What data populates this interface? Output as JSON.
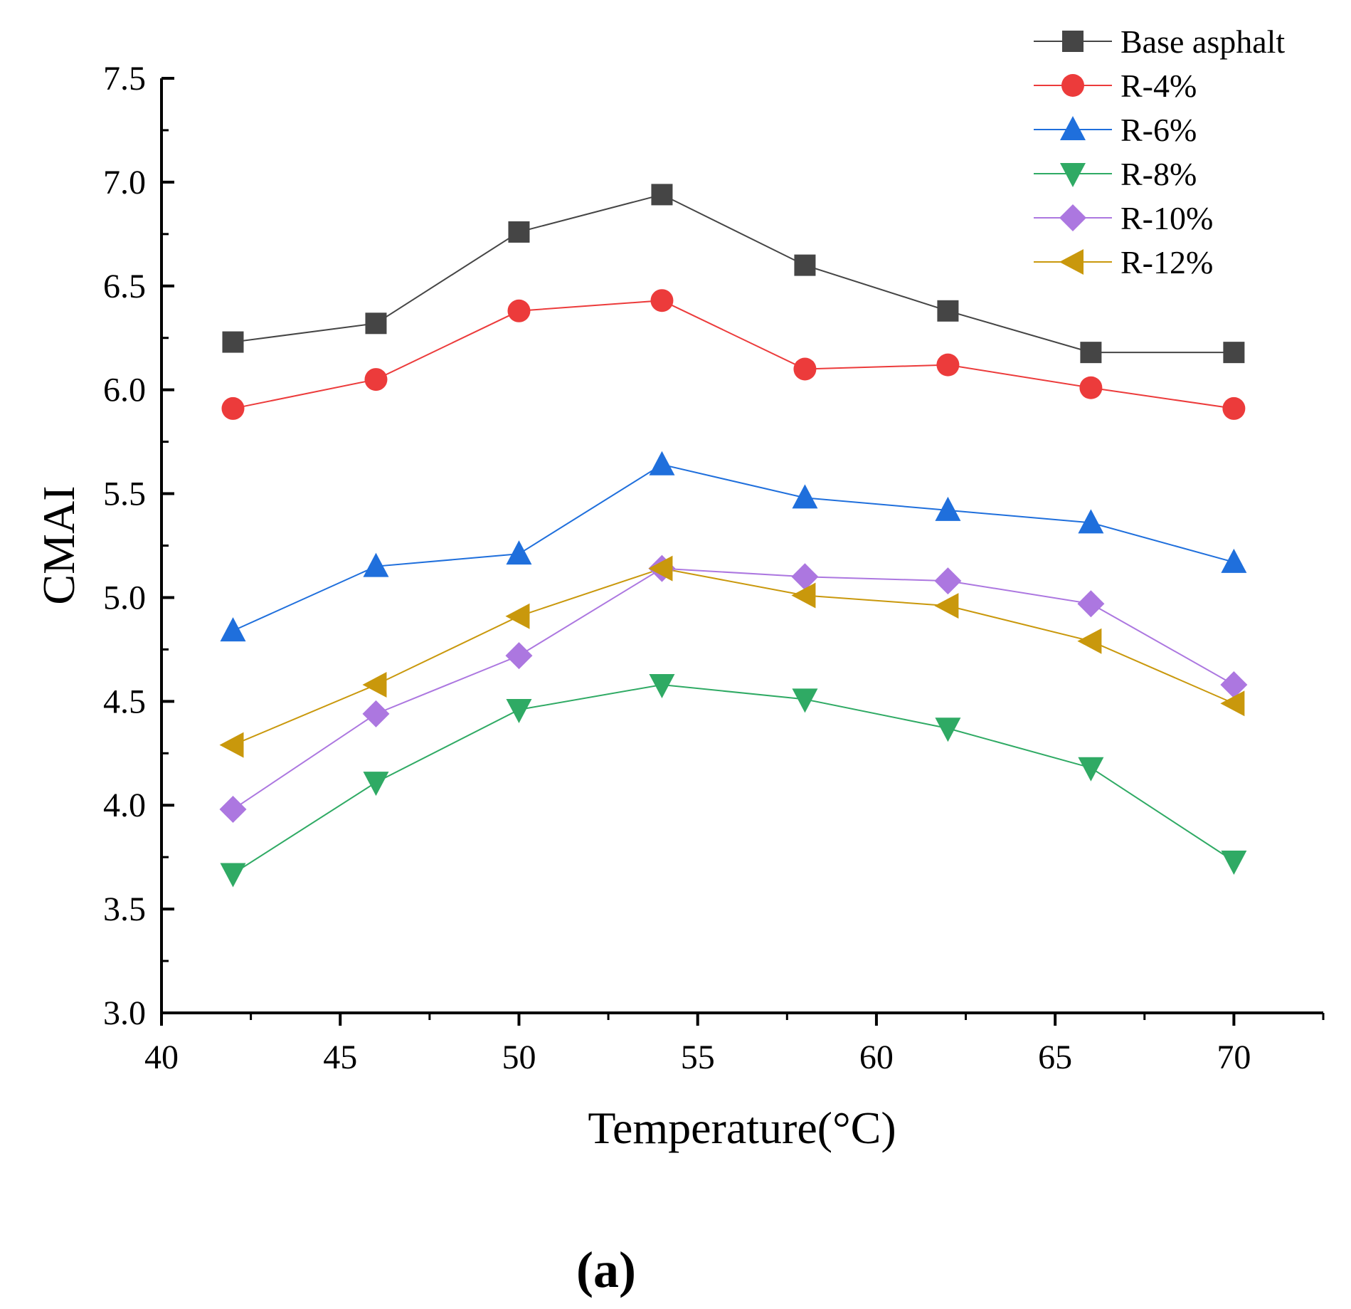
{
  "chart_data": {
    "type": "line",
    "title": "",
    "xlabel": "Temperature(°C)",
    "ylabel": "CMAI",
    "xlim": [
      40,
      72.5
    ],
    "ylim": [
      3.0,
      7.5
    ],
    "xticks": [
      40,
      45,
      50,
      55,
      60,
      65,
      70
    ],
    "yticks": [
      3.0,
      3.5,
      4.0,
      4.5,
      5.0,
      5.5,
      6.0,
      6.5,
      7.0,
      7.5
    ],
    "xtick_labels": [
      "40",
      "45",
      "50",
      "55",
      "60",
      "65",
      "70"
    ],
    "ytick_labels": [
      "3.0",
      "3.5",
      "4.0",
      "4.5",
      "5.0",
      "5.5",
      "6.0",
      "6.5",
      "7.0",
      "7.5"
    ],
    "grid": false,
    "legend_position": "top-right",
    "panel_label": "(a)",
    "x": [
      42,
      46,
      50,
      54,
      58,
      62,
      66,
      70
    ],
    "series": [
      {
        "name": "Base asphalt",
        "color": "#454545",
        "marker": "square",
        "values": [
          6.23,
          6.32,
          6.76,
          6.94,
          6.6,
          6.38,
          6.18,
          6.18
        ]
      },
      {
        "name": "R-4%",
        "color": "#ec3b3b",
        "marker": "circle",
        "values": [
          5.91,
          6.05,
          6.38,
          6.43,
          6.1,
          6.12,
          6.01,
          5.91
        ]
      },
      {
        "name": "R-6%",
        "color": "#1f6fdc",
        "marker": "triangle-up",
        "values": [
          4.84,
          5.15,
          5.21,
          5.64,
          5.48,
          5.42,
          5.36,
          5.17
        ]
      },
      {
        "name": "R-8%",
        "color": "#2faa64",
        "marker": "triangle-down",
        "values": [
          3.67,
          4.11,
          4.46,
          4.58,
          4.51,
          4.37,
          4.18,
          3.73
        ]
      },
      {
        "name": "R-10%",
        "color": "#ac77e0",
        "marker": "diamond",
        "values": [
          3.98,
          4.44,
          4.72,
          5.14,
          5.1,
          5.08,
          4.97,
          4.58
        ]
      },
      {
        "name": "R-12%",
        "color": "#c9980c",
        "marker": "triangle-left",
        "values": [
          4.29,
          4.58,
          4.91,
          5.14,
          5.01,
          4.96,
          4.79,
          4.49
        ]
      }
    ]
  }
}
